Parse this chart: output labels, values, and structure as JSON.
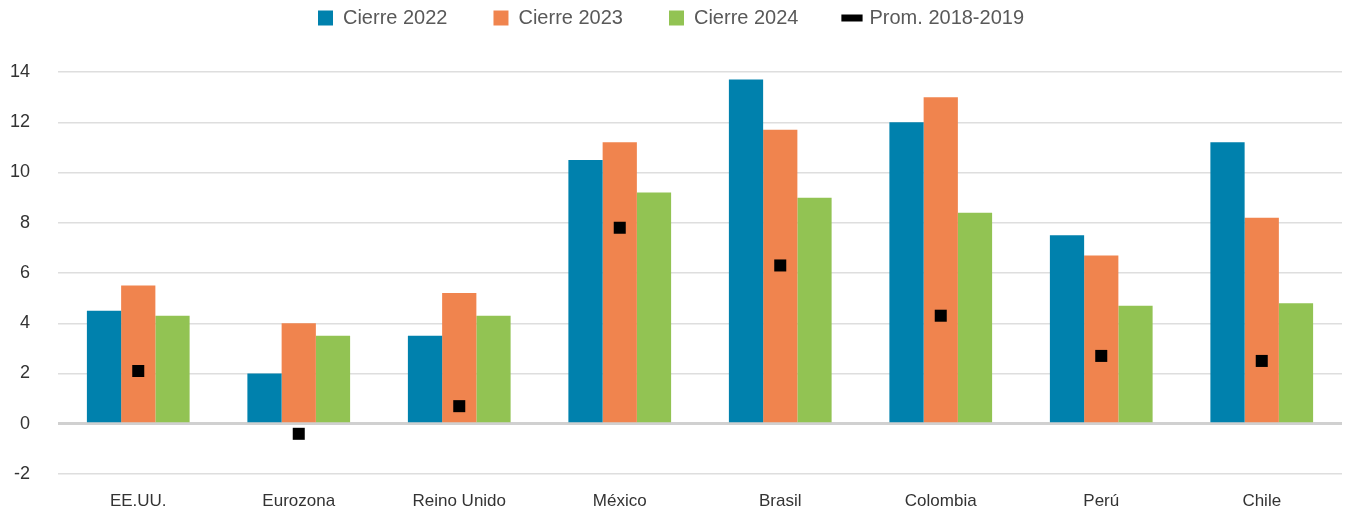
{
  "chart_data": {
    "type": "bar",
    "categories": [
      "EE.UU.",
      "Eurozona",
      "Reino Unido",
      "México",
      "Brasil",
      "Colombia",
      "Perú",
      "Chile"
    ],
    "series": [
      {
        "name": "Cierre 2022",
        "color": "#0081ad",
        "values": [
          4.5,
          2.0,
          3.5,
          10.5,
          13.7,
          12.0,
          7.5,
          11.2
        ]
      },
      {
        "name": "Cierre 2023",
        "color": "#f0844e",
        "values": [
          5.5,
          4.0,
          5.2,
          11.2,
          11.7,
          13.0,
          6.7,
          8.2
        ]
      },
      {
        "name": "Cierre 2024",
        "color": "#92c353",
        "values": [
          4.3,
          3.5,
          4.3,
          9.2,
          9.0,
          8.4,
          4.7,
          4.8
        ]
      },
      {
        "name": "Prom. 2018-2019",
        "type": "scatter",
        "marker": "square",
        "color": "#000000",
        "x": [
          "EE.UU.",
          "Eurozona",
          "Reino Unido",
          "México",
          "Brasil",
          "Colombia",
          "Perú",
          "Chile"
        ],
        "values": [
          2.1,
          -0.4,
          0.7,
          7.8,
          6.3,
          4.3,
          2.7,
          2.5
        ]
      }
    ],
    "ylim": [
      -2,
      14
    ],
    "yticks": [
      -2,
      0,
      2,
      4,
      6,
      8,
      10,
      12,
      14
    ],
    "grid": "y",
    "legend": "top"
  }
}
